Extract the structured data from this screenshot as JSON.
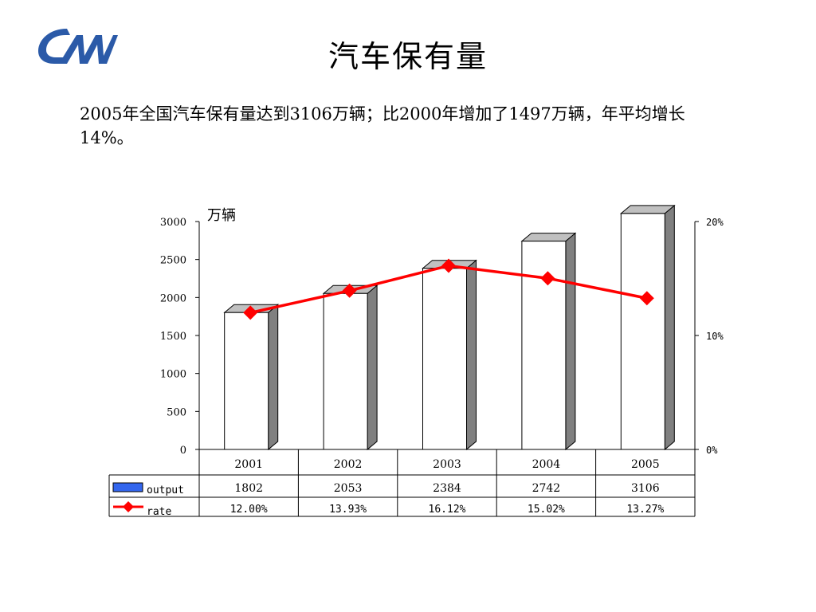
{
  "slide": {
    "title": "汽车保有量",
    "summary": "2005年全国汽车保有量达到3106万辆；比2000年增加了1497万辆，年平均增长14%。",
    "logo": {
      "icon": "cam-logo",
      "color": "#2b5aa8"
    }
  },
  "chart_data": {
    "type": "bar",
    "categories": [
      "2001",
      "2002",
      "2003",
      "2004",
      "2005"
    ],
    "series": [
      {
        "name": "output",
        "type": "bar",
        "axis": "left",
        "color": "#ffffff",
        "legend_color": "#3366ee",
        "values": [
          1802,
          2053,
          2384,
          2742,
          3106
        ],
        "labels": [
          "1802",
          "2053",
          "2384",
          "2742",
          "3106"
        ]
      },
      {
        "name": "rate",
        "type": "line",
        "axis": "right",
        "color": "#ff0000",
        "marker": "diamond",
        "values": [
          12.0,
          13.93,
          16.12,
          15.02,
          13.27
        ],
        "labels": [
          "12.00%",
          "13.93%",
          "16.12%",
          "15.02%",
          "13.27%"
        ]
      }
    ],
    "y_left": {
      "unit_label": "万辆",
      "ylim": [
        0,
        3000
      ],
      "ticks": [
        "0",
        "500",
        "1000",
        "1500",
        "2000",
        "2500",
        "3000"
      ]
    },
    "y_right": {
      "ylim": [
        0,
        20
      ],
      "ticks": [
        "0%",
        "10%",
        "20%"
      ]
    },
    "grid": false,
    "legend": "data-table",
    "style_3d": true
  }
}
